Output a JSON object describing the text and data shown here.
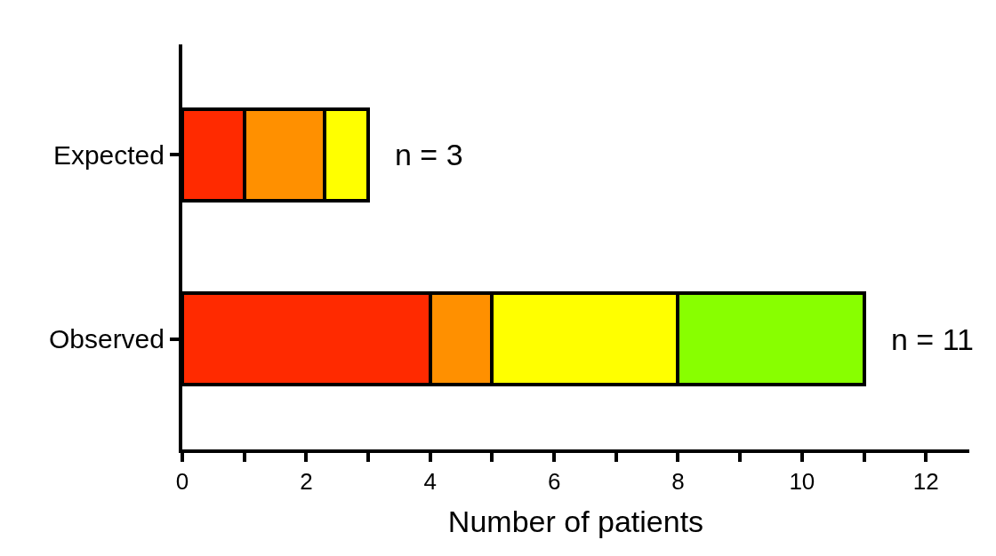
{
  "chart_data": {
    "type": "bar",
    "orientation": "horizontal",
    "stacked": true,
    "categories": [
      "Expected",
      "Observed"
    ],
    "series": [
      {
        "color": "#ff2a00",
        "values": [
          1.0,
          4
        ]
      },
      {
        "color": "#ff9000",
        "values": [
          1.3,
          1
        ]
      },
      {
        "color": "#ffff00",
        "values": [
          0.7,
          3
        ]
      },
      {
        "color": "#88ff00",
        "values": [
          null,
          3
        ]
      }
    ],
    "xlabel": "Number of patients",
    "xlim": [
      0,
      12.7
    ],
    "xticks": [
      0,
      {
        "value": 1,
        "label": null
      },
      2,
      {
        "value": 3,
        "label": null
      },
      4,
      {
        "value": 5,
        "label": null
      },
      6,
      {
        "value": 7,
        "label": null
      },
      8,
      {
        "value": 9,
        "label": null
      },
      10,
      {
        "value": 11,
        "label": null
      },
      12
    ],
    "annotations": [
      {
        "text": "n = 3",
        "x": 3,
        "y": "Expected"
      },
      {
        "text": "n = 11",
        "x": 11,
        "y": "Observed"
      }
    ]
  }
}
